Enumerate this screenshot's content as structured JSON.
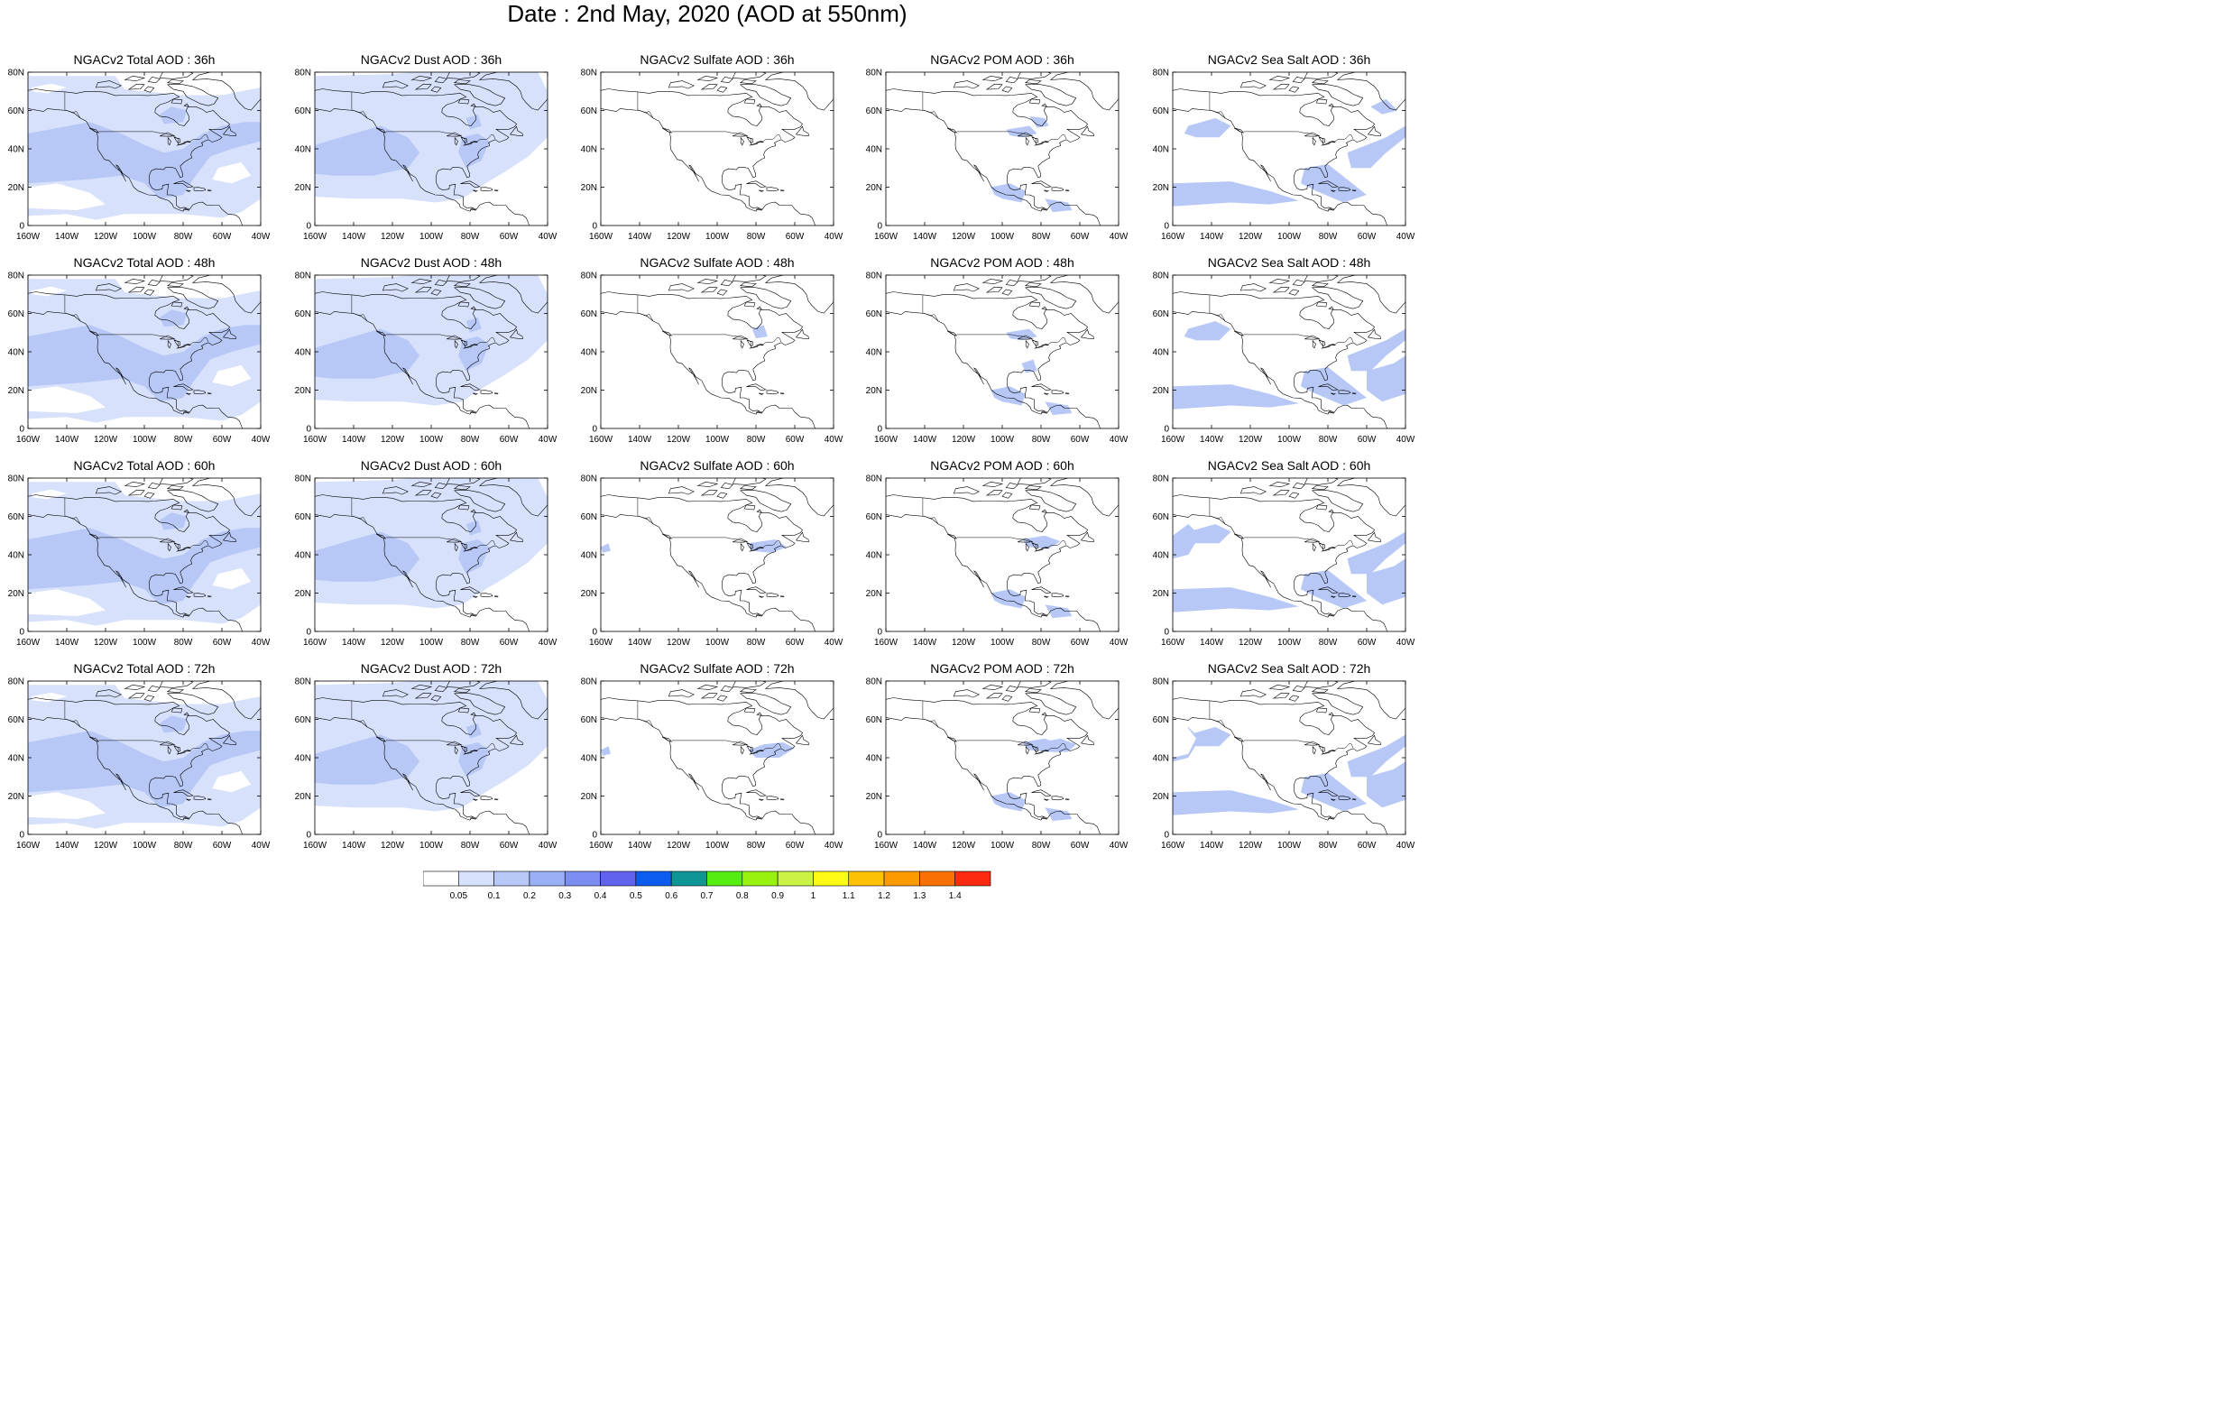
{
  "title": "Date : 2nd May, 2020 (AOD at 550nm)",
  "axes": {
    "lat_ticks": [
      "80N",
      "60N",
      "40N",
      "20N",
      "0"
    ],
    "lon_ticks": [
      "160W",
      "140W",
      "120W",
      "100W",
      "80W",
      "60W",
      "40W"
    ]
  },
  "panels": [
    {
      "title": "NGACv2 Total AOD : 36h",
      "species": "total",
      "hour": 36
    },
    {
      "title": "NGACv2 Dust AOD : 36h",
      "species": "dust",
      "hour": 36
    },
    {
      "title": "NGACv2 Sulfate AOD : 36h",
      "species": "sulfate",
      "hour": 36
    },
    {
      "title": "NGACv2 POM AOD : 36h",
      "species": "pom",
      "hour": 36
    },
    {
      "title": "NGACv2 Sea Salt AOD : 36h",
      "species": "seasalt",
      "hour": 36
    },
    {
      "title": "NGACv2 Total AOD : 48h",
      "species": "total",
      "hour": 48
    },
    {
      "title": "NGACv2 Dust AOD : 48h",
      "species": "dust",
      "hour": 48
    },
    {
      "title": "NGACv2 Sulfate AOD : 48h",
      "species": "sulfate",
      "hour": 48
    },
    {
      "title": "NGACv2 POM AOD : 48h",
      "species": "pom",
      "hour": 48
    },
    {
      "title": "NGACv2 Sea Salt AOD : 48h",
      "species": "seasalt",
      "hour": 48
    },
    {
      "title": "NGACv2 Total AOD : 60h",
      "species": "total",
      "hour": 60
    },
    {
      "title": "NGACv2 Dust AOD : 60h",
      "species": "dust",
      "hour": 60
    },
    {
      "title": "NGACv2 Sulfate AOD : 60h",
      "species": "sulfate",
      "hour": 60
    },
    {
      "title": "NGACv2 POM AOD : 60h",
      "species": "pom",
      "hour": 60
    },
    {
      "title": "NGACv2 Sea Salt AOD : 60h",
      "species": "seasalt",
      "hour": 60
    },
    {
      "title": "NGACv2 Total AOD : 72h",
      "species": "total",
      "hour": 72
    },
    {
      "title": "NGACv2 Dust AOD : 72h",
      "species": "dust",
      "hour": 72
    },
    {
      "title": "NGACv2 Sulfate AOD : 72h",
      "species": "sulfate",
      "hour": 72
    },
    {
      "title": "NGACv2 POM AOD : 72h",
      "species": "pom",
      "hour": 72
    },
    {
      "title": "NGACv2 Sea Salt  AOD : 72h",
      "species": "seasalt",
      "hour": 72
    }
  ],
  "colorbar": {
    "colors": [
      "#ffffff",
      "#d7e1fb",
      "#b7c8f7",
      "#99b0f5",
      "#7c8ef2",
      "#5f63ee",
      "#0c5cf0",
      "#0f9596",
      "#55ec12",
      "#98f20e",
      "#c9f244",
      "#fdfb13",
      "#fdc003",
      "#fd9a01",
      "#fb7101",
      "#fb2a11"
    ],
    "labels": [
      "0.05",
      "0.1",
      "0.2",
      "0.3",
      "0.4",
      "0.5",
      "0.6",
      "0.7",
      "0.8",
      "0.9",
      "1",
      "1.1",
      "1.2",
      "1.3",
      "1.4"
    ]
  }
}
